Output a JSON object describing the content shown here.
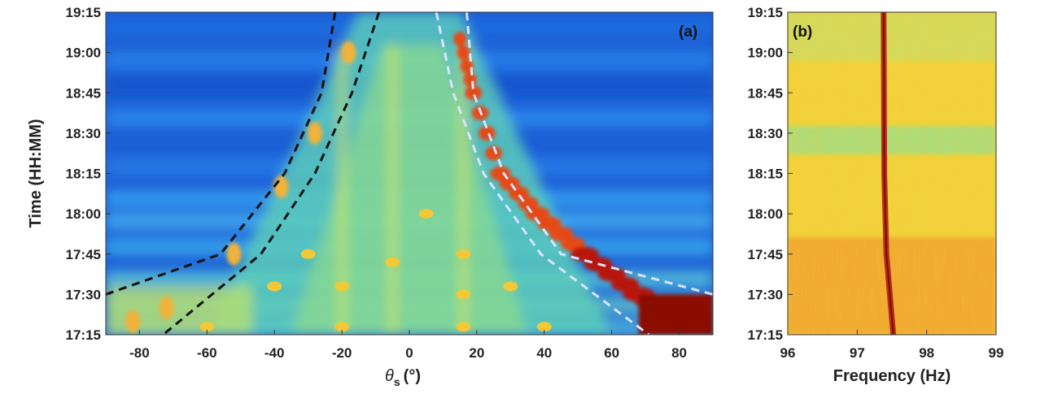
{
  "chart_data": [
    {
      "type": "heatmap",
      "panel_label": "(a)",
      "xlabel_symbol": "θ",
      "xlabel_subscript": "s",
      "xlabel_unit": "(°)",
      "ylabel": "Time (HH:MM)",
      "xlim": [
        -90,
        90
      ],
      "ylim": [
        "17:15",
        "19:15"
      ],
      "xticks": [
        -80,
        -60,
        -40,
        -20,
        0,
        20,
        40,
        60,
        80
      ],
      "xtick_labels": [
        "-80",
        "-60",
        "-40",
        "-20",
        "0",
        "20",
        "40",
        "60",
        "80"
      ],
      "yticks": [
        "17:15",
        "17:30",
        "17:45",
        "18:00",
        "18:15",
        "18:30",
        "18:45",
        "19:00",
        "19:15"
      ],
      "colormap": "jet",
      "background_color": "#1c5fd6",
      "highlighted_track": {
        "description": "bright ridge between white dashed curves",
        "points": [
          {
            "time": "19:05",
            "theta": 15
          },
          {
            "time": "18:45",
            "theta": 19
          },
          {
            "time": "18:15",
            "theta": 27
          },
          {
            "time": "18:00",
            "theta": 38
          },
          {
            "time": "17:45",
            "theta": 52
          },
          {
            "time": "17:30",
            "theta": 68
          },
          {
            "time": "17:20",
            "theta": 82
          }
        ]
      },
      "faint_track": {
        "points": [
          {
            "time": "19:00",
            "theta": -18
          },
          {
            "time": "18:30",
            "theta": -28
          },
          {
            "time": "18:10",
            "theta": -38
          },
          {
            "time": "17:45",
            "theta": -52
          },
          {
            "time": "17:25",
            "theta": -72
          },
          {
            "time": "17:20",
            "theta": -82
          }
        ]
      },
      "vertical_streaks_theta": [
        -20,
        -5,
        16
      ],
      "dashed_curves": [
        {
          "color": "#111111",
          "points": [
            {
              "time": "19:15",
              "theta": -22
            },
            {
              "time": "18:45",
              "theta": -26
            },
            {
              "time": "18:15",
              "theta": -37
            },
            {
              "time": "17:45",
              "theta": -56
            },
            {
              "time": "17:30",
              "theta": -90
            }
          ]
        },
        {
          "color": "#111111",
          "points": [
            {
              "time": "19:15",
              "theta": -9
            },
            {
              "time": "18:45",
              "theta": -17
            },
            {
              "time": "18:15",
              "theta": -28
            },
            {
              "time": "17:45",
              "theta": -44
            },
            {
              "time": "17:15",
              "theta": -73
            }
          ]
        },
        {
          "color": "#d8e4ff",
          "points": [
            {
              "time": "19:15",
              "theta": 8
            },
            {
              "time": "18:45",
              "theta": 13
            },
            {
              "time": "18:15",
              "theta": 22
            },
            {
              "time": "17:45",
              "theta": 39
            },
            {
              "time": "17:15",
              "theta": 71
            }
          ]
        },
        {
          "color": "#d8e4ff",
          "points": [
            {
              "time": "19:15",
              "theta": 17
            },
            {
              "time": "18:45",
              "theta": 19
            },
            {
              "time": "18:15",
              "theta": 28
            },
            {
              "time": "17:45",
              "theta": 45
            },
            {
              "time": "17:30",
              "theta": 90
            }
          ]
        }
      ]
    },
    {
      "type": "heatmap",
      "panel_label": "(b)",
      "xlabel": "Frequency (Hz)",
      "xlim": [
        96,
        99
      ],
      "ylim": [
        "17:15",
        "19:15"
      ],
      "xticks": [
        96,
        97,
        98,
        99
      ],
      "xtick_labels": [
        "96",
        "97",
        "98",
        "99"
      ],
      "yticks": [
        "17:15",
        "17:30",
        "17:45",
        "18:00",
        "18:15",
        "18:30",
        "18:45",
        "19:00",
        "19:15"
      ],
      "colormap": "jet",
      "tonal_line": {
        "points": [
          {
            "time": "19:15",
            "freq": 97.38
          },
          {
            "time": "18:15",
            "freq": 97.39
          },
          {
            "time": "17:45",
            "freq": 97.42
          },
          {
            "time": "17:15",
            "freq": 97.52
          }
        ]
      },
      "band_times": [
        "18:30"
      ]
    }
  ]
}
